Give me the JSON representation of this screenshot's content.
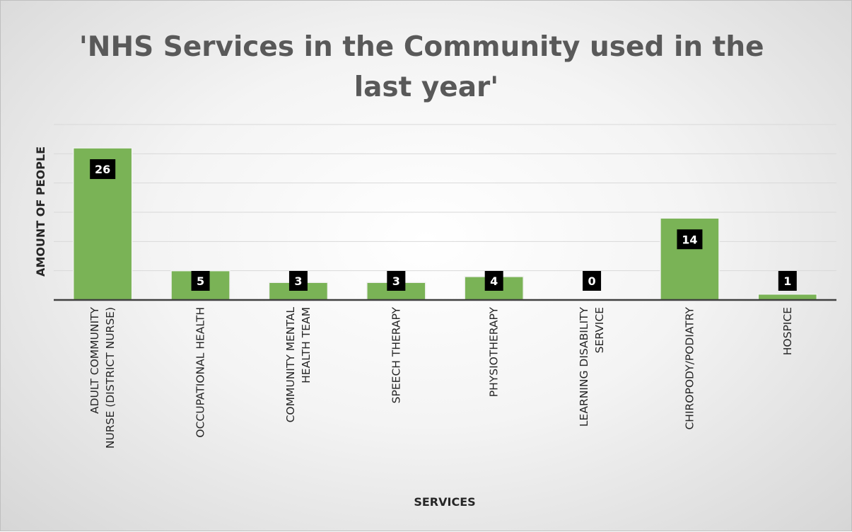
{
  "chart_data": {
    "type": "bar",
    "title": "'NHS Services in the Community used in the last year'",
    "title_lines": [
      "'NHS Services in the Community used in the",
      "last year'"
    ],
    "xlabel": "SERVICES",
    "ylabel": "AMOUNT OF PEOPLE",
    "categories": [
      [
        "ADULT COMMUNITY",
        "NURSE (DISTRICT NURSE)"
      ],
      [
        "OCCUPATIONAL HEALTH"
      ],
      [
        "COMMUNITY MENTAL",
        "HEALTH TEAM"
      ],
      [
        "SPEECH THERAPY"
      ],
      [
        "PHYSIOTHERAPY"
      ],
      [
        "LEARNING DISABILITY",
        "SERVICE"
      ],
      [
        "CHIROPODY/PODIATRY"
      ],
      [
        "HOSPICE"
      ]
    ],
    "values": [
      26,
      5,
      3,
      3,
      4,
      0,
      14,
      1
    ],
    "ylim": [
      0,
      30
    ],
    "gridlines": true,
    "legend": false,
    "colors": {
      "bar": "#7ab356",
      "bar_edge": "#f2f2f2",
      "label_bg": "#000000",
      "label_text": "#ffffff",
      "title": "#595959",
      "grid": "#d9d9d9",
      "axis": "#404040"
    }
  }
}
